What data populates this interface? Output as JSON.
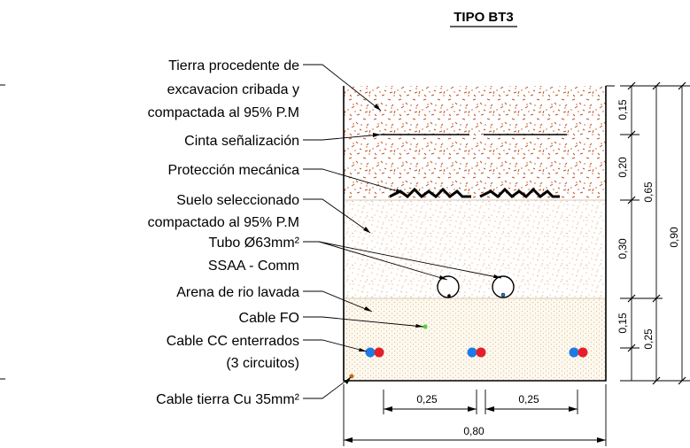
{
  "title": "TIPO BT3",
  "labels": {
    "tierra_1": "Tierra procedente de",
    "tierra_2": "excavacion cribada y",
    "tierra_3": "compactada al 95% P.M",
    "cinta": "Cinta señalización",
    "proteccion": "Protección mecánica",
    "suelo_1": "Suelo seleccionado",
    "suelo_2": "compactado al 95% P.M",
    "tubo_1": "Tubo Ø63mm²",
    "tubo_2": "SSAA - Comm",
    "arena": "Arena de rio lavada",
    "cable_fo": "Cable FO",
    "cable_cc_1": "Cable CC enterrados",
    "cable_cc_2": "(3 circuitos)",
    "cable_tierra": "Cable tierra Cu 35mm²"
  },
  "dimensions": {
    "d015_top": "0,15",
    "d020": "0,20",
    "d030": "0,30",
    "d015_bot": "0,15",
    "d065": "0,65",
    "d025_right": "0,25",
    "d090": "0,90",
    "d025_left": "0,25",
    "d025_mid": "0,25",
    "d080": "0,80"
  },
  "colors": {
    "top_fill_dots": "#c0501e",
    "mid_fill_dots": "#e8a878",
    "sand_dots": "#c9a86a",
    "cable_blue": "#1e7be6",
    "cable_red": "#e61e2a",
    "cable_fo": "#4cd639",
    "cable_ground": "#c86a14"
  }
}
